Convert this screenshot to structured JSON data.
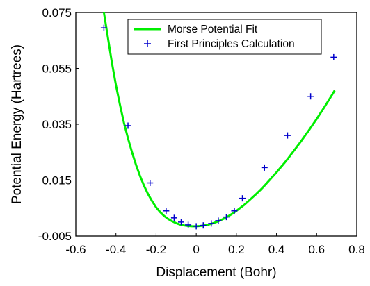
{
  "chart_data": {
    "type": "scatter",
    "title": "",
    "xlabel": "Displacement (Bohr)",
    "ylabel": "Potential Energy (Hartrees)",
    "xlim": [
      -0.6,
      0.8
    ],
    "ylim": [
      -0.005,
      0.075
    ],
    "x_ticks": [
      "-0.6",
      "-0.4",
      "-0.2",
      "0",
      "0.2",
      "0.4",
      "0.6",
      "0.8"
    ],
    "y_ticks": [
      "-0.005",
      "0.015",
      "0.035",
      "0.055",
      "0.075"
    ],
    "grid": false,
    "legend_position": "top-right",
    "series": [
      {
        "name": "Morse Potential Fit",
        "kind": "line",
        "color": "#00ee00",
        "x": [
          -0.46,
          -0.44,
          -0.42,
          -0.4,
          -0.38,
          -0.36,
          -0.34,
          -0.32,
          -0.3,
          -0.28,
          -0.26,
          -0.24,
          -0.22,
          -0.2,
          -0.18,
          -0.16,
          -0.14,
          -0.12,
          -0.1,
          -0.08,
          -0.06,
          -0.04,
          -0.02,
          0.0,
          0.02,
          0.04,
          0.06,
          0.08,
          0.1,
          0.12,
          0.14,
          0.16,
          0.18,
          0.2,
          0.22,
          0.24,
          0.26,
          0.28,
          0.3,
          0.32,
          0.34,
          0.36,
          0.38,
          0.4,
          0.42,
          0.44,
          0.46,
          0.48,
          0.5,
          0.52,
          0.54,
          0.56,
          0.58,
          0.6,
          0.62,
          0.64,
          0.66,
          0.68,
          0.69
        ],
        "y": [
          0.0765,
          0.066,
          0.057,
          0.049,
          0.042,
          0.0355,
          0.03,
          0.025,
          0.0205,
          0.0165,
          0.013,
          0.01,
          0.0075,
          0.0053,
          0.0036,
          0.0022,
          0.0011,
          0.0003,
          -0.0004,
          -0.0009,
          -0.0012,
          -0.0014,
          -0.0015,
          -0.0015,
          -0.0014,
          -0.0012,
          -0.0009,
          -0.0005,
          0.0,
          0.0006,
          0.0013,
          0.0021,
          0.003,
          0.004,
          0.0051,
          0.0062,
          0.0075,
          0.0088,
          0.0101,
          0.0115,
          0.013,
          0.0146,
          0.0162,
          0.0178,
          0.0195,
          0.0212,
          0.023,
          0.0249,
          0.0268,
          0.0287,
          0.0307,
          0.0327,
          0.0348,
          0.0369,
          0.0391,
          0.0413,
          0.0436,
          0.0459,
          0.0471
        ]
      },
      {
        "name": "First Principles Calculation",
        "kind": "points",
        "marker": "+",
        "color": "#0000cc",
        "x": [
          -0.46,
          -0.34,
          -0.23,
          -0.15,
          -0.11,
          -0.075,
          -0.04,
          0.0,
          0.035,
          0.075,
          0.11,
          0.15,
          0.19,
          0.23,
          0.34,
          0.455,
          0.57,
          0.685
        ],
        "y": [
          0.0695,
          0.0345,
          0.014,
          0.004,
          0.0015,
          0.0,
          -0.001,
          -0.0015,
          -0.0012,
          -0.0005,
          0.0005,
          0.0018,
          0.004,
          0.0085,
          0.0195,
          0.031,
          0.045,
          0.059
        ]
      }
    ]
  }
}
